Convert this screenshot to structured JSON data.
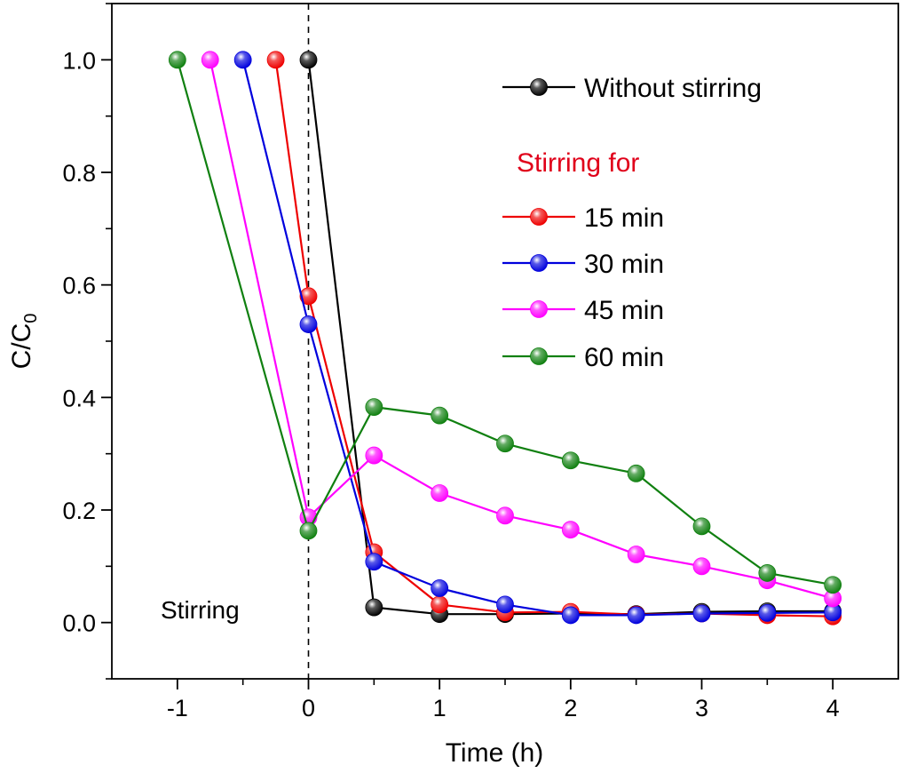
{
  "chart_data": {
    "type": "line",
    "title": "",
    "xlabel": "Time (h)",
    "ylabel_main": "C/C",
    "ylabel_sub": "0",
    "xlim": [
      -1.5,
      4.5
    ],
    "ylim": [
      -0.1,
      1.1
    ],
    "xticks": [
      -1,
      0,
      1,
      2,
      3,
      4
    ],
    "yticks": [
      0.0,
      0.2,
      0.4,
      0.6,
      0.8,
      1.0
    ],
    "xtick_labels": [
      "-1",
      "0",
      "1",
      "2",
      "3",
      "4"
    ],
    "ytick_labels": [
      "0.0",
      "0.2",
      "0.4",
      "0.6",
      "0.8",
      "1.0"
    ],
    "vline_x": 0,
    "annotation": "Stirring",
    "legend_heading": "Stirring for",
    "legend_heading_color": "#e0001a",
    "series": [
      {
        "name": "Without stirring",
        "color": "#000000",
        "x": [
          0,
          0.5,
          1,
          1.5,
          2,
          2.5,
          3,
          3.5,
          4
        ],
        "values": [
          1.0,
          0.027,
          0.015,
          0.015,
          0.016,
          0.015,
          0.019,
          0.02,
          0.02
        ]
      },
      {
        "name": "15 min",
        "color": "#ee0000",
        "x": [
          -0.25,
          0,
          0.5,
          1,
          1.5,
          2,
          2.5,
          3,
          3.5,
          4
        ],
        "values": [
          1.0,
          0.58,
          0.125,
          0.032,
          0.018,
          0.019,
          0.014,
          0.016,
          0.013,
          0.011
        ]
      },
      {
        "name": "30 min",
        "color": "#0000dd",
        "x": [
          -0.5,
          0,
          0.5,
          1,
          1.5,
          2,
          2.5,
          3,
          3.5,
          4
        ],
        "values": [
          1.0,
          0.53,
          0.108,
          0.061,
          0.032,
          0.013,
          0.013,
          0.016,
          0.017,
          0.018
        ]
      },
      {
        "name": "45 min",
        "color": "#ff00ff",
        "x": [
          -0.75,
          0,
          0.5,
          1,
          1.5,
          2,
          2.5,
          3,
          3.5,
          4
        ],
        "values": [
          1.0,
          0.187,
          0.297,
          0.23,
          0.19,
          0.165,
          0.121,
          0.1,
          0.075,
          0.043
        ]
      },
      {
        "name": "60 min",
        "color": "#108010",
        "x": [
          -1,
          0,
          0.5,
          1,
          1.5,
          2,
          2.5,
          3,
          3.5,
          4
        ],
        "values": [
          1.0,
          0.163,
          0.383,
          0.368,
          0.318,
          0.288,
          0.265,
          0.171,
          0.088,
          0.067
        ]
      }
    ]
  }
}
